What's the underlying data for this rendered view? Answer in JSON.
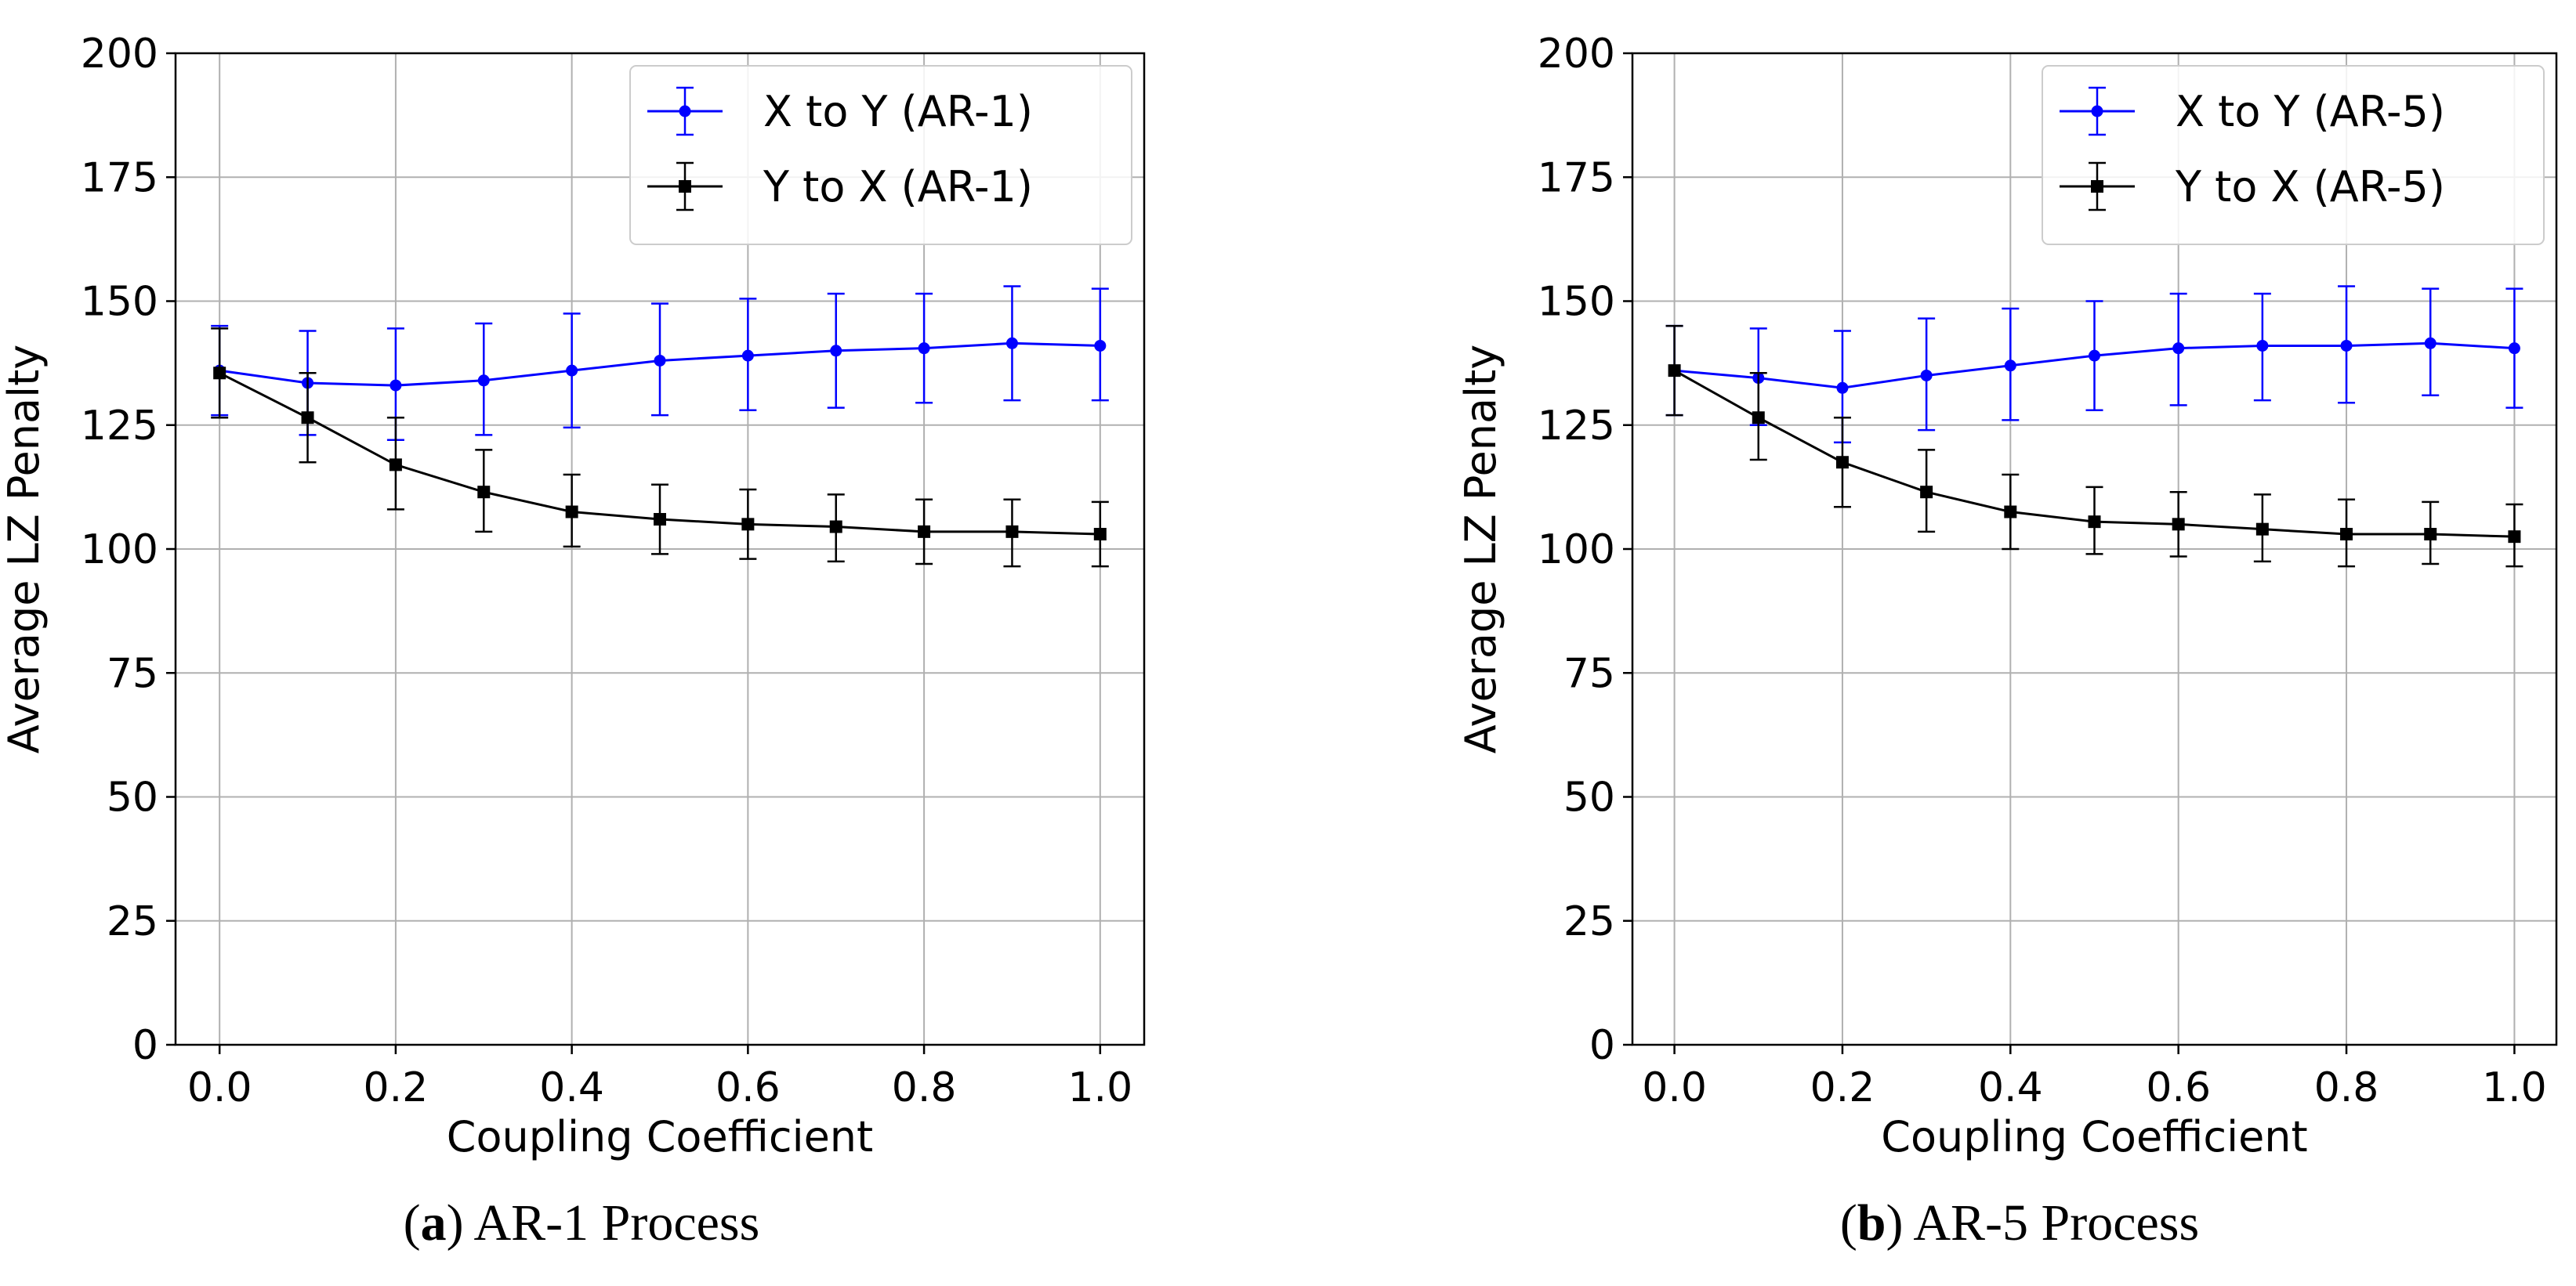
{
  "chart_data": [
    {
      "type": "line",
      "caption_letter": "a",
      "caption_text": "AR-1 Process",
      "xlabel": "Coupling Coefficient",
      "ylabel": "Average LZ Penalty",
      "xlim": [
        -0.05,
        1.05
      ],
      "ylim": [
        0,
        200
      ],
      "xticks": [
        "0.0",
        "0.2",
        "0.4",
        "0.6",
        "0.8",
        "1.0"
      ],
      "yticks": [
        "0",
        "25",
        "50",
        "75",
        "100",
        "125",
        "150",
        "175",
        "200"
      ],
      "grid": true,
      "legend_position": "top-right",
      "x": [
        0.0,
        0.1,
        0.2,
        0.3,
        0.4,
        0.5,
        0.6,
        0.7,
        0.8,
        0.9,
        1.0
      ],
      "series": [
        {
          "name": "X to Y (AR-1)",
          "color": "#0000ff",
          "marker": "circle",
          "values": [
            136,
            133.5,
            133,
            134,
            136,
            138,
            139,
            140,
            140.5,
            141.5,
            141
          ],
          "error_lower": [
            127,
            123,
            122,
            123,
            124.5,
            127,
            128,
            128.5,
            129.5,
            130,
            130
          ],
          "error_upper": [
            145,
            144,
            144.5,
            145.5,
            147.5,
            149.5,
            150.5,
            151.5,
            151.5,
            153,
            152.5
          ]
        },
        {
          "name": "Y to X (AR-1)",
          "color": "#000000",
          "marker": "square",
          "values": [
            135.5,
            126.5,
            117,
            111.5,
            107.5,
            106,
            105,
            104.5,
            103.5,
            103.5,
            103
          ],
          "error_lower": [
            126.5,
            117.5,
            108,
            103.5,
            100.5,
            99,
            98,
            97.5,
            97,
            96.5,
            96.5
          ],
          "error_upper": [
            144.5,
            135.5,
            126.5,
            120,
            115,
            113,
            112,
            111,
            110,
            110,
            109.5
          ]
        }
      ]
    },
    {
      "type": "line",
      "caption_letter": "b",
      "caption_text": "AR-5 Process",
      "xlabel": "Coupling Coefficient",
      "ylabel": "Average LZ Penalty",
      "xlim": [
        -0.05,
        1.05
      ],
      "ylim": [
        0,
        200
      ],
      "xticks": [
        "0.0",
        "0.2",
        "0.4",
        "0.6",
        "0.8",
        "1.0"
      ],
      "yticks": [
        "0",
        "25",
        "50",
        "75",
        "100",
        "125",
        "150",
        "175",
        "200"
      ],
      "grid": true,
      "legend_position": "top-right",
      "x": [
        0.0,
        0.1,
        0.2,
        0.3,
        0.4,
        0.5,
        0.6,
        0.7,
        0.8,
        0.9,
        1.0
      ],
      "series": [
        {
          "name": "X to Y (AR-5)",
          "color": "#0000ff",
          "marker": "circle",
          "values": [
            136,
            134.5,
            132.5,
            135,
            137,
            139,
            140.5,
            141,
            141,
            141.5,
            140.5
          ],
          "error_lower": [
            127,
            125,
            121.5,
            124,
            126,
            128,
            129,
            130,
            129.5,
            131,
            128.5
          ],
          "error_upper": [
            145,
            144.5,
            144,
            146.5,
            148.5,
            150,
            151.5,
            151.5,
            153,
            152.5,
            152.5
          ]
        },
        {
          "name": "Y to X (AR-5)",
          "color": "#000000",
          "marker": "square",
          "values": [
            136,
            126.5,
            117.5,
            111.5,
            107.5,
            105.5,
            105,
            104,
            103,
            103,
            102.5
          ],
          "error_lower": [
            127,
            118,
            108.5,
            103.5,
            100,
            99,
            98.5,
            97.5,
            96.5,
            97,
            96.5
          ],
          "error_upper": [
            145,
            135.5,
            126.5,
            120,
            115,
            112.5,
            111.5,
            111,
            110,
            109.5,
            109
          ]
        }
      ]
    }
  ]
}
